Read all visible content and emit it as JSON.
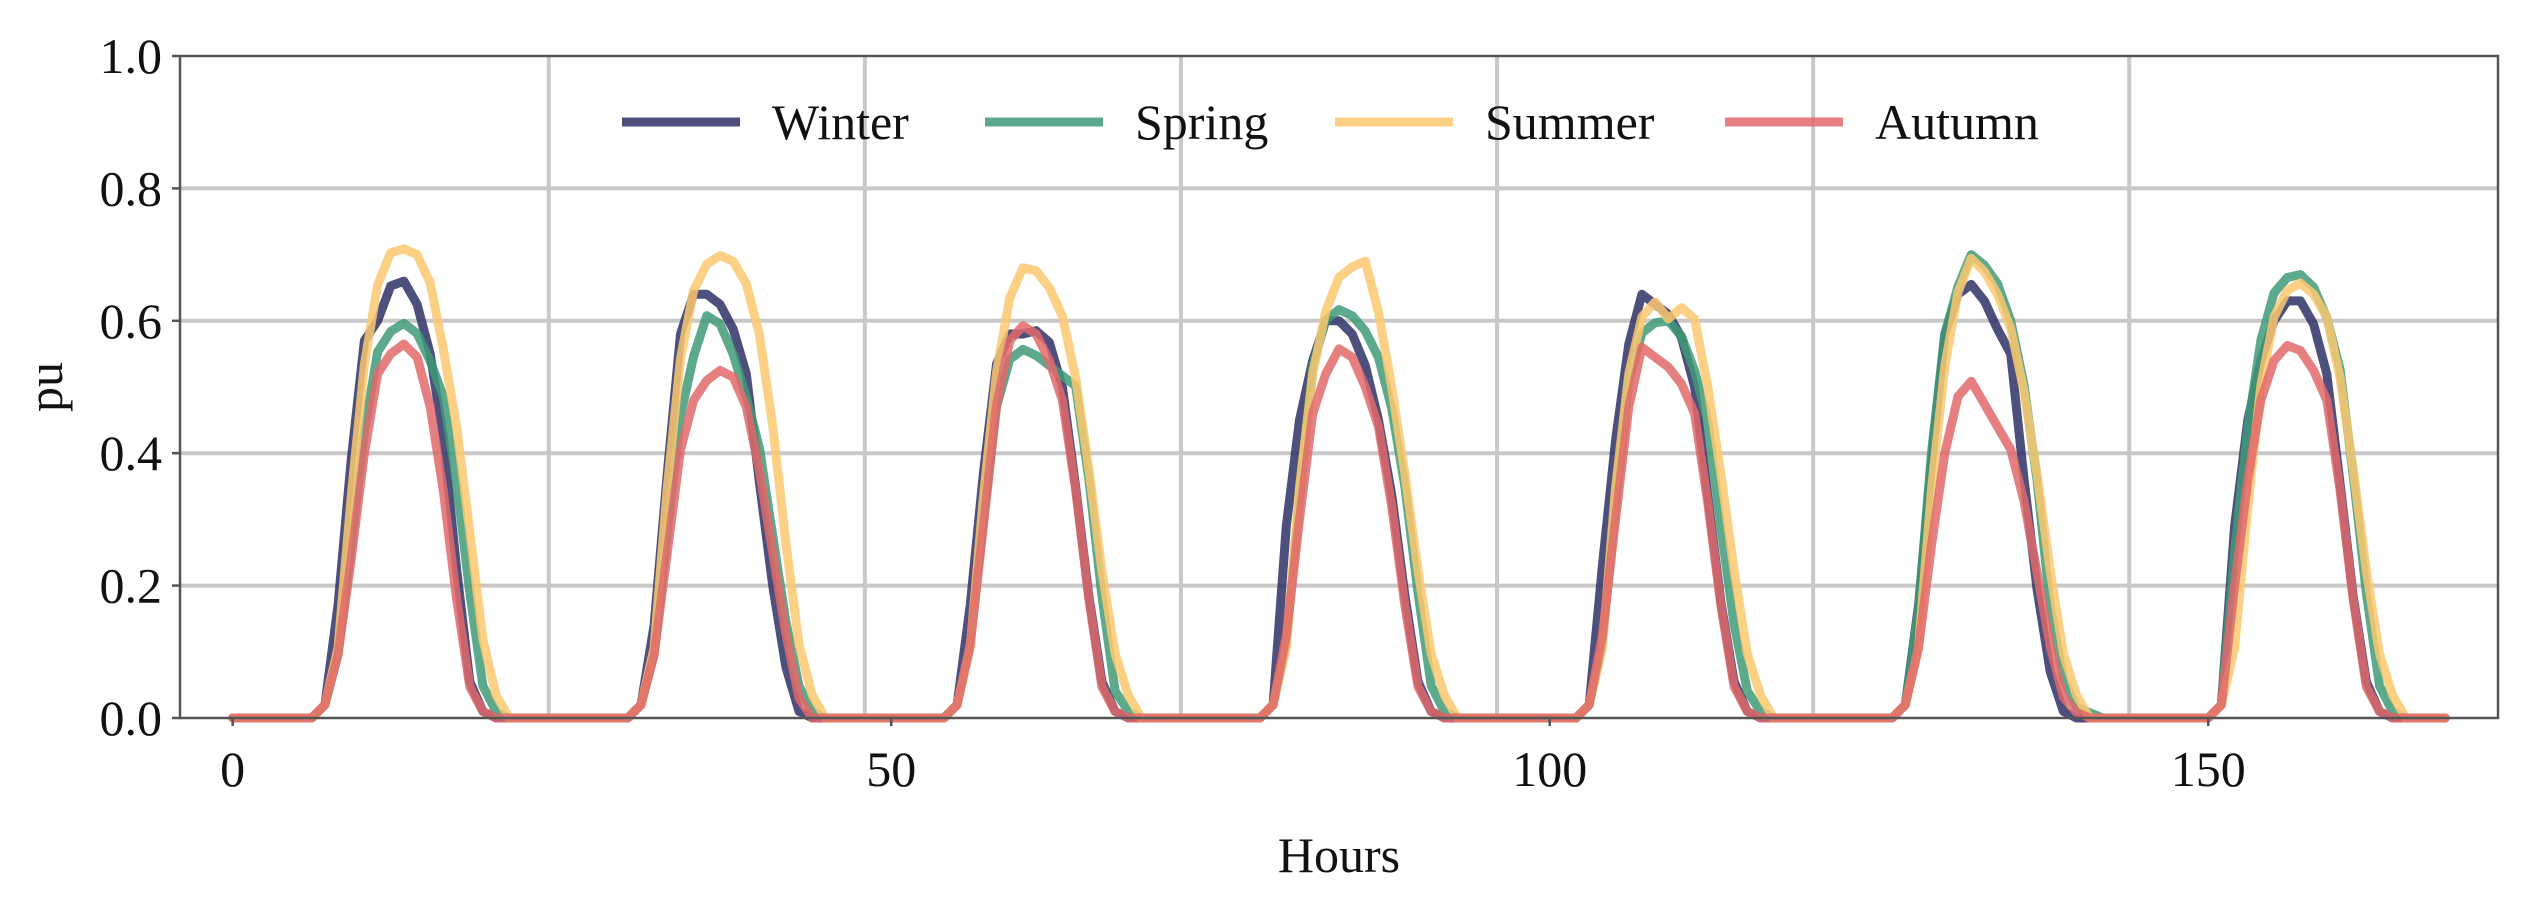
{
  "chart_data": {
    "type": "line",
    "xlabel": "Hours",
    "ylabel": "pu",
    "xlim": [
      -4,
      172
    ],
    "ylim": [
      0,
      1.0
    ],
    "xticks": [
      0,
      50,
      100,
      150
    ],
    "xtick_labels": [
      "0",
      "50",
      "100",
      "150"
    ],
    "yticks": [
      0.0,
      0.2,
      0.4,
      0.6,
      0.8,
      1.0
    ],
    "ytick_labels": [
      "0.0",
      "0.2",
      "0.4",
      "0.6",
      "0.8",
      "1.0"
    ],
    "vgrid": [
      24,
      48,
      72,
      96,
      120,
      144
    ],
    "legend_position": "top-center",
    "x_range": [
      0,
      168
    ],
    "series": [
      {
        "name": "Winter",
        "color": "#2e3066",
        "peaks": [
          {
            "start": 7,
            "end": 19,
            "vals": [
              0.02,
              0.22,
              0.56,
              0.6,
              0.67,
              0.65,
              0.55,
              0.38,
              0.07,
              0.01
            ]
          },
          {
            "start": 31,
            "end": 43,
            "vals": [
              0.02,
              0.18,
              0.56,
              0.64,
              0.64,
              0.61,
              0.52,
              0.3,
              0.1,
              0.01
            ]
          },
          {
            "start": 55,
            "end": 67,
            "vals": [
              0.02,
              0.22,
              0.52,
              0.58,
              0.58,
              0.59,
              0.5,
              0.3,
              0.07,
              0.01
            ]
          },
          {
            "start": 79,
            "end": 91,
            "vals": [
              0.02,
              0.38,
              0.52,
              0.6,
              0.6,
              0.56,
              0.45,
              0.3,
              0.07,
              0.01
            ]
          },
          {
            "start": 103,
            "end": 115,
            "vals": [
              0.02,
              0.3,
              0.54,
              0.64,
              0.62,
              0.6,
              0.5,
              0.28,
              0.07,
              0.01
            ]
          },
          {
            "start": 127,
            "end": 139,
            "vals": [
              0.02,
              0.22,
              0.56,
              0.64,
              0.66,
              0.6,
              0.55,
              0.3,
              0.09,
              0.01
            ]
          },
          {
            "start": 151,
            "end": 163,
            "vals": [
              0.02,
              0.38,
              0.52,
              0.6,
              0.64,
              0.62,
              0.52,
              0.3,
              0.07,
              0.01
            ]
          }
        ]
      },
      {
        "name": "Spring",
        "color": "#3f9a78",
        "peaks": [
          {
            "start": 7,
            "end": 20,
            "vals": [
              0.02,
              0.12,
              0.38,
              0.55,
              0.59,
              0.6,
              0.55,
              0.48,
              0.3,
              0.06,
              0.01
            ]
          },
          {
            "start": 31,
            "end": 44,
            "vals": [
              0.02,
              0.12,
              0.42,
              0.54,
              0.62,
              0.58,
              0.5,
              0.4,
              0.22,
              0.06,
              0.01
            ]
          },
          {
            "start": 55,
            "end": 68,
            "vals": [
              0.02,
              0.14,
              0.44,
              0.54,
              0.56,
              0.54,
              0.52,
              0.5,
              0.3,
              0.05,
              0.01
            ]
          },
          {
            "start": 79,
            "end": 92,
            "vals": [
              0.02,
              0.14,
              0.5,
              0.6,
              0.62,
              0.6,
              0.56,
              0.46,
              0.3,
              0.06,
              0.01
            ]
          },
          {
            "start": 103,
            "end": 116,
            "vals": [
              0.02,
              0.14,
              0.48,
              0.58,
              0.6,
              0.6,
              0.54,
              0.44,
              0.22,
              0.05,
              0.01
            ]
          },
          {
            "start": 127,
            "end": 142,
            "vals": [
              0.02,
              0.2,
              0.54,
              0.64,
              0.7,
              0.68,
              0.64,
              0.54,
              0.36,
              0.12,
              0.02,
              0.01,
              0.0
            ]
          },
          {
            "start": 151,
            "end": 164,
            "vals": [
              0.02,
              0.32,
              0.54,
              0.64,
              0.67,
              0.67,
              0.62,
              0.52,
              0.3,
              0.06,
              0.01
            ]
          }
        ]
      },
      {
        "name": "Summer",
        "color": "#fcc870",
        "peaks": [
          {
            "start": 7,
            "end": 21,
            "vals": [
              0.02,
              0.12,
              0.42,
              0.62,
              0.7,
              0.71,
              0.7,
              0.65,
              0.52,
              0.38,
              0.15,
              0.04,
              0.0
            ]
          },
          {
            "start": 31,
            "end": 45,
            "vals": [
              0.02,
              0.12,
              0.44,
              0.62,
              0.68,
              0.7,
              0.69,
              0.65,
              0.55,
              0.36,
              0.14,
              0.04,
              0.0
            ]
          },
          {
            "start": 55,
            "end": 69,
            "vals": [
              0.02,
              0.12,
              0.42,
              0.6,
              0.68,
              0.68,
              0.65,
              0.6,
              0.48,
              0.3,
              0.12,
              0.04,
              0.0
            ]
          },
          {
            "start": 79,
            "end": 93,
            "vals": [
              0.02,
              0.12,
              0.44,
              0.58,
              0.66,
              0.68,
              0.69,
              0.6,
              0.46,
              0.3,
              0.12,
              0.04,
              0.0
            ]
          },
          {
            "start": 103,
            "end": 117,
            "vals": [
              0.02,
              0.12,
              0.44,
              0.58,
              0.64,
              0.6,
              0.62,
              0.6,
              0.46,
              0.3,
              0.12,
              0.04,
              0.0
            ]
          },
          {
            "start": 127,
            "end": 141,
            "vals": [
              0.02,
              0.12,
              0.44,
              0.6,
              0.7,
              0.68,
              0.64,
              0.58,
              0.46,
              0.3,
              0.12,
              0.04,
              0.0
            ]
          },
          {
            "start": 151,
            "end": 165,
            "vals": [
              0.02,
              0.12,
              0.4,
              0.58,
              0.64,
              0.66,
              0.64,
              0.6,
              0.48,
              0.3,
              0.12,
              0.04,
              0.0
            ]
          }
        ]
      },
      {
        "name": "Autumn",
        "color": "#e2686a",
        "peaks": [
          {
            "start": 7,
            "end": 19,
            "vals": [
              0.02,
              0.12,
              0.36,
              0.52,
              0.56,
              0.57,
              0.47,
              0.3,
              0.06,
              0.01
            ]
          },
          {
            "start": 31,
            "end": 43,
            "vals": [
              0.02,
              0.12,
              0.38,
              0.48,
              0.52,
              0.53,
              0.47,
              0.34,
              0.16,
              0.03
            ]
          },
          {
            "start": 55,
            "end": 67,
            "vals": [
              0.02,
              0.14,
              0.44,
              0.57,
              0.6,
              0.56,
              0.48,
              0.3,
              0.06,
              0.01
            ]
          },
          {
            "start": 79,
            "end": 91,
            "vals": [
              0.02,
              0.16,
              0.44,
              0.52,
              0.57,
              0.52,
              0.44,
              0.28,
              0.06,
              0.01
            ]
          },
          {
            "start": 103,
            "end": 115,
            "vals": [
              0.02,
              0.16,
              0.44,
              0.56,
              0.54,
              0.52,
              0.46,
              0.28,
              0.06,
              0.01
            ]
          },
          {
            "start": 127,
            "end": 141,
            "vals": [
              0.02,
              0.12,
              0.32,
              0.46,
              0.52,
              0.48,
              0.44,
              0.4,
              0.3,
              0.16,
              0.04,
              0.01,
              0.0
            ]
          },
          {
            "start": 151,
            "end": 163,
            "vals": [
              0.02,
              0.26,
              0.46,
              0.54,
              0.57,
              0.54,
              0.48,
              0.3,
              0.06,
              0.01
            ]
          }
        ]
      }
    ]
  }
}
